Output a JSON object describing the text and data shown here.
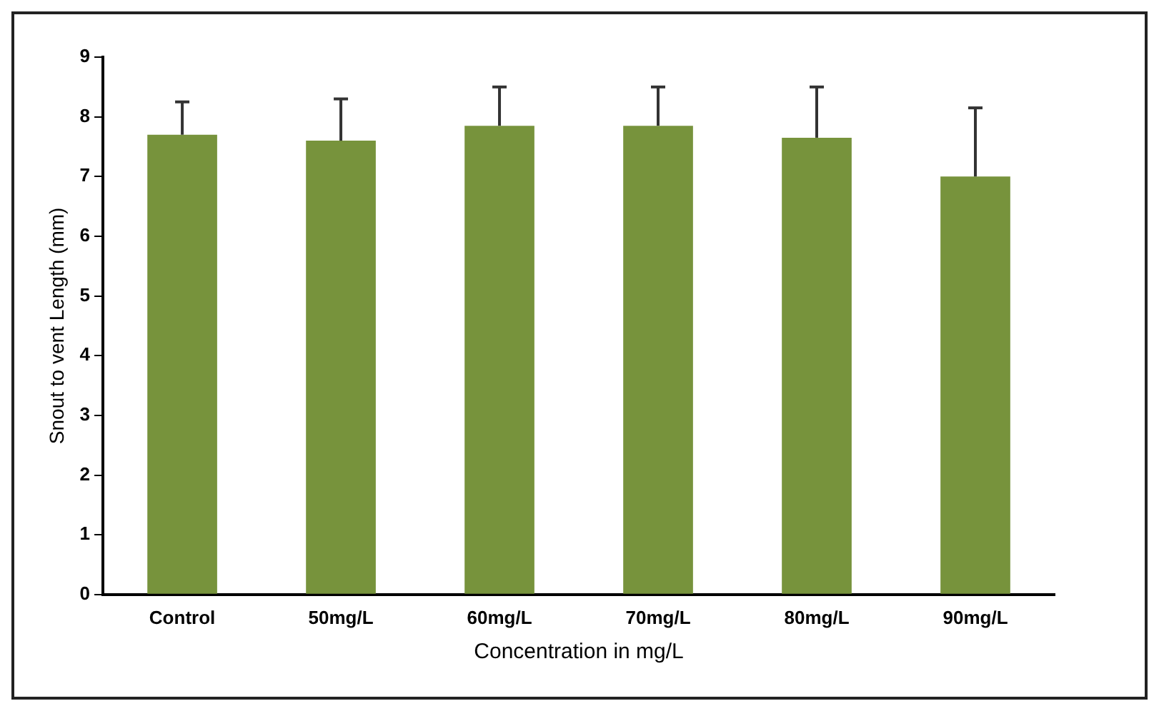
{
  "chart_data": {
    "type": "bar",
    "xlabel": "Concentration in mg/L",
    "ylabel": "Snout to vent Length (mm)",
    "categories": [
      "Control",
      "50mg/L",
      "60mg/L",
      "70mg/L",
      "80mg/L",
      "90mg/L"
    ],
    "values": [
      7.7,
      7.6,
      7.85,
      7.85,
      7.65,
      7.0
    ],
    "errors": [
      [
        7.7,
        8.25
      ],
      [
        7.6,
        8.3
      ],
      [
        7.85,
        8.5
      ],
      [
        7.85,
        8.5
      ],
      [
        7.65,
        8.5
      ],
      [
        7.0,
        8.15
      ]
    ],
    "color": "#77933c",
    "ylim": [
      0,
      9
    ],
    "yticks": [
      0,
      1,
      2,
      3,
      4,
      5,
      6,
      7,
      8,
      9
    ],
    "grid": false,
    "legend": false
  }
}
